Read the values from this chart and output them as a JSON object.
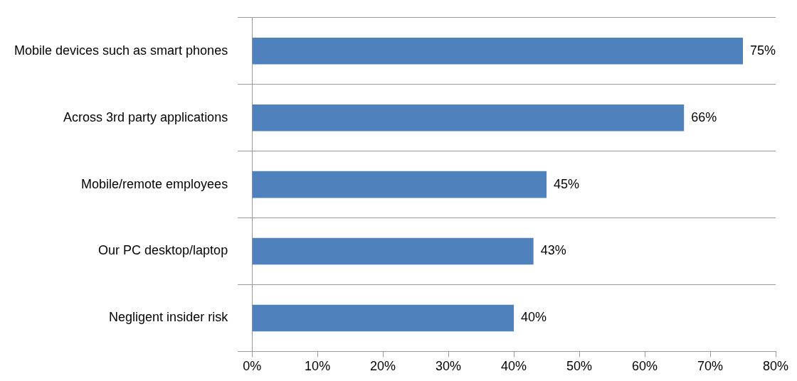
{
  "chart_data": {
    "type": "bar",
    "orientation": "horizontal",
    "categories": [
      "Mobile devices such as smart phones",
      "Across 3rd party applications",
      "Mobile/remote employees",
      "Our PC desktop/laptop",
      "Negligent insider risk"
    ],
    "values": [
      75,
      66,
      45,
      43,
      40
    ],
    "value_labels": [
      "75%",
      "66%",
      "45%",
      "43%",
      "40%"
    ],
    "color": "#4f81bd",
    "xlim": [
      0,
      80
    ],
    "xticks": [
      {
        "value": 0,
        "label": "0%"
      },
      {
        "value": 10,
        "label": "10%"
      },
      {
        "value": 20,
        "label": "20%"
      },
      {
        "value": 30,
        "label": "30%"
      },
      {
        "value": 40,
        "label": "40%"
      },
      {
        "value": 50,
        "label": "50%"
      },
      {
        "value": 60,
        "label": "60%"
      },
      {
        "value": 70,
        "label": "70%"
      },
      {
        "value": 80,
        "label": "80%"
      }
    ],
    "grid": "y",
    "legend": false
  }
}
